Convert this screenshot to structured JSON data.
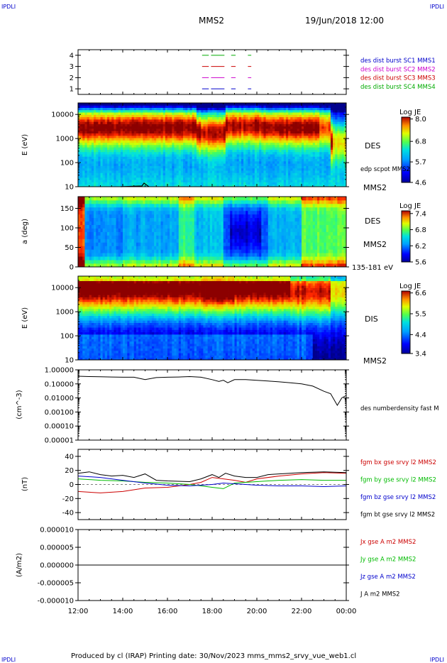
{
  "page": {
    "corner_tl": "IPDLI",
    "corner_tr": "IPDLI",
    "corner_bl": "IPDLI",
    "corner_br": "IPDLI",
    "spacecraft": "MMS2",
    "datetime": "19/Jun/2018 12:00",
    "footer": "Produced by cl (IRAP)   Printing date: 30/Nov/2023   mms_mms2_srvy_vue_web1.cl"
  },
  "colors": {
    "mms1": "#0000cc",
    "mms2": "#cc00cc",
    "mms3": "#cc0000",
    "mms4": "#00aa00",
    "bx": "#cc0000",
    "by": "#00bb00",
    "bz": "#0000cc",
    "bt": "#000000"
  },
  "chart_data": [
    {
      "type": "line",
      "panel": "burst-availability",
      "yticks": [
        "1",
        "2",
        "3",
        "4"
      ],
      "ylim": [
        0.5,
        4.5
      ],
      "legend": [
        {
          "name": "des dist burst SC1 MMS1",
          "color": "#0000cc"
        },
        {
          "name": "des dist burst SC2 MMS2",
          "color": "#cc00cc"
        },
        {
          "name": "des dist burst SC3 MMS3",
          "color": "#cc0000"
        },
        {
          "name": "des dist burst SC4 MMS4",
          "color": "#00aa00"
        }
      ],
      "x_hours": [
        17.5,
        20.0
      ]
    },
    {
      "type": "heatmap",
      "panel": "des-energy",
      "ylabel": "E (eV)",
      "yscale": "log",
      "yticks": [
        "10",
        "100",
        "1000",
        "10000"
      ],
      "ylim": [
        10,
        30000
      ],
      "colorbar_title": "Log JE",
      "colorbar_ticks": [
        "8.0",
        "6.8",
        "5.7",
        "4.6"
      ],
      "colorbar_range": [
        4.6,
        8.1
      ],
      "label": "DES",
      "annotation": "edp scpot MMS2",
      "sc_label": "MMS2"
    },
    {
      "type": "heatmap",
      "panel": "des-pitch",
      "ylabel": "a (deg)",
      "yticks": [
        "0",
        "50",
        "100",
        "150"
      ],
      "ylim": [
        0,
        180
      ],
      "colorbar_title": "Log JE",
      "colorbar_ticks": [
        "7.4",
        "6.8",
        "6.2",
        "5.6"
      ],
      "colorbar_range": [
        5.6,
        7.5
      ],
      "label": "DES",
      "sc_label": "MMS2",
      "energy_range": "135-181 eV"
    },
    {
      "type": "heatmap",
      "panel": "dis-energy",
      "ylabel": "E (eV)",
      "yscale": "log",
      "yticks": [
        "10",
        "100",
        "1000",
        "10000"
      ],
      "ylim": [
        10,
        30000
      ],
      "colorbar_title": "Log JE",
      "colorbar_ticks": [
        "6.6",
        "5.5",
        "4.4",
        "3.4"
      ],
      "colorbar_range": [
        3.4,
        6.7
      ],
      "label": "DIS",
      "sc_label": "MMS2"
    },
    {
      "type": "line",
      "panel": "density",
      "ylabel": "(cm^-3)",
      "yscale": "log",
      "yticks": [
        "1.00000",
        "0.10000",
        "0.01000",
        "0.00100",
        "0.00010",
        "0.00001"
      ],
      "ylim": [
        1e-05,
        1.0
      ],
      "legend": [
        {
          "name": "des numberdensity fast M",
          "color": "#000000"
        }
      ],
      "series": [
        {
          "name": "des numberdensity fast M",
          "x_hours": [
            12.0,
            12.5,
            13.0,
            13.5,
            14.0,
            14.5,
            15.0,
            15.5,
            16.0,
            16.5,
            17.0,
            17.5,
            18.0,
            18.3,
            18.5,
            18.7,
            19.0,
            19.5,
            20.0,
            20.5,
            21.0,
            21.5,
            22.0,
            22.5,
            23.0,
            23.3,
            23.6,
            23.8,
            24.0
          ],
          "values": [
            0.35,
            0.33,
            0.32,
            0.31,
            0.3,
            0.3,
            0.2,
            0.28,
            0.3,
            0.31,
            0.33,
            0.3,
            0.2,
            0.15,
            0.18,
            0.12,
            0.2,
            0.2,
            0.18,
            0.16,
            0.14,
            0.12,
            0.1,
            0.07,
            0.03,
            0.02,
            0.003,
            0.01,
            0.015
          ]
        }
      ]
    },
    {
      "type": "line",
      "panel": "magnetic-field",
      "ylabel": "(nT)",
      "yticks": [
        "-40",
        "-20",
        "0",
        "20",
        "40"
      ],
      "ylim": [
        -50,
        50
      ],
      "legend": [
        {
          "name": "fgm bx gse srvy l2 MMS2",
          "color": "#cc0000"
        },
        {
          "name": "fgm by gse srvy l2 MMS2",
          "color": "#00bb00"
        },
        {
          "name": "fgm bz gse srvy l2 MMS2",
          "color": "#0000cc"
        },
        {
          "name": "fgm bt gse srvy l2 MMS2",
          "color": "#000000"
        }
      ],
      "series": [
        {
          "name": "bx",
          "x_hours": [
            12,
            13,
            14,
            15,
            16,
            17,
            17.5,
            18,
            18.5,
            19,
            19.5,
            20,
            21,
            22,
            23,
            24
          ],
          "values": [
            -10,
            -12,
            -10,
            -5,
            -4,
            0,
            3,
            10,
            8,
            6,
            3,
            8,
            12,
            15,
            17,
            16
          ]
        },
        {
          "name": "by",
          "x_hours": [
            12,
            13,
            14,
            15,
            16,
            17,
            17.5,
            18,
            18.5,
            19,
            19.5,
            20,
            21,
            22,
            23,
            24
          ],
          "values": [
            8,
            6,
            5,
            3,
            2,
            0,
            -2,
            -4,
            -6,
            2,
            3,
            4,
            6,
            7,
            6,
            6
          ]
        },
        {
          "name": "bz",
          "x_hours": [
            12,
            13,
            14,
            15,
            16,
            17,
            17.5,
            18,
            18.5,
            19,
            19.5,
            20,
            21,
            22,
            23,
            24
          ],
          "values": [
            12,
            10,
            6,
            2,
            -1,
            -2,
            -1,
            0,
            2,
            1,
            0,
            -1,
            -2,
            -2,
            -3,
            -2
          ]
        },
        {
          "name": "bt",
          "x_hours": [
            12,
            12.5,
            13,
            13.5,
            14,
            14.5,
            15,
            15.5,
            16,
            17,
            17.5,
            18,
            18.3,
            18.6,
            19,
            19.5,
            20,
            20.5,
            21,
            22,
            23,
            24
          ],
          "values": [
            16,
            18,
            14,
            12,
            13,
            10,
            15,
            6,
            5,
            4,
            8,
            14,
            10,
            16,
            12,
            10,
            10,
            14,
            15,
            17,
            18,
            17
          ]
        }
      ]
    },
    {
      "type": "line",
      "panel": "current-density",
      "ylabel": "(A/m2)",
      "yticks": [
        "0.000010",
        "0.000005",
        "0.000000",
        "-0.000005",
        "-0.000010"
      ],
      "ylim": [
        -1e-05,
        1e-05
      ],
      "legend": [
        {
          "name": "Jx gse A m2 MMS2",
          "color": "#cc0000"
        },
        {
          "name": "Jy gse A m2 MMS2",
          "color": "#00bb00"
        },
        {
          "name": "Jz gse A m2 MMS2",
          "color": "#0000cc"
        },
        {
          "name": "J A m2 MMS2",
          "color": "#000000"
        }
      ],
      "series": [
        {
          "name": "J",
          "x_hours": [
            12,
            24
          ],
          "values": [
            0,
            0
          ]
        }
      ]
    }
  ],
  "xaxis": {
    "ticks": [
      "12:00",
      "14:00",
      "16:00",
      "18:00",
      "20:00",
      "22:00",
      "00:00"
    ],
    "x_hours": [
      12,
      14,
      16,
      18,
      20,
      22,
      24
    ]
  }
}
